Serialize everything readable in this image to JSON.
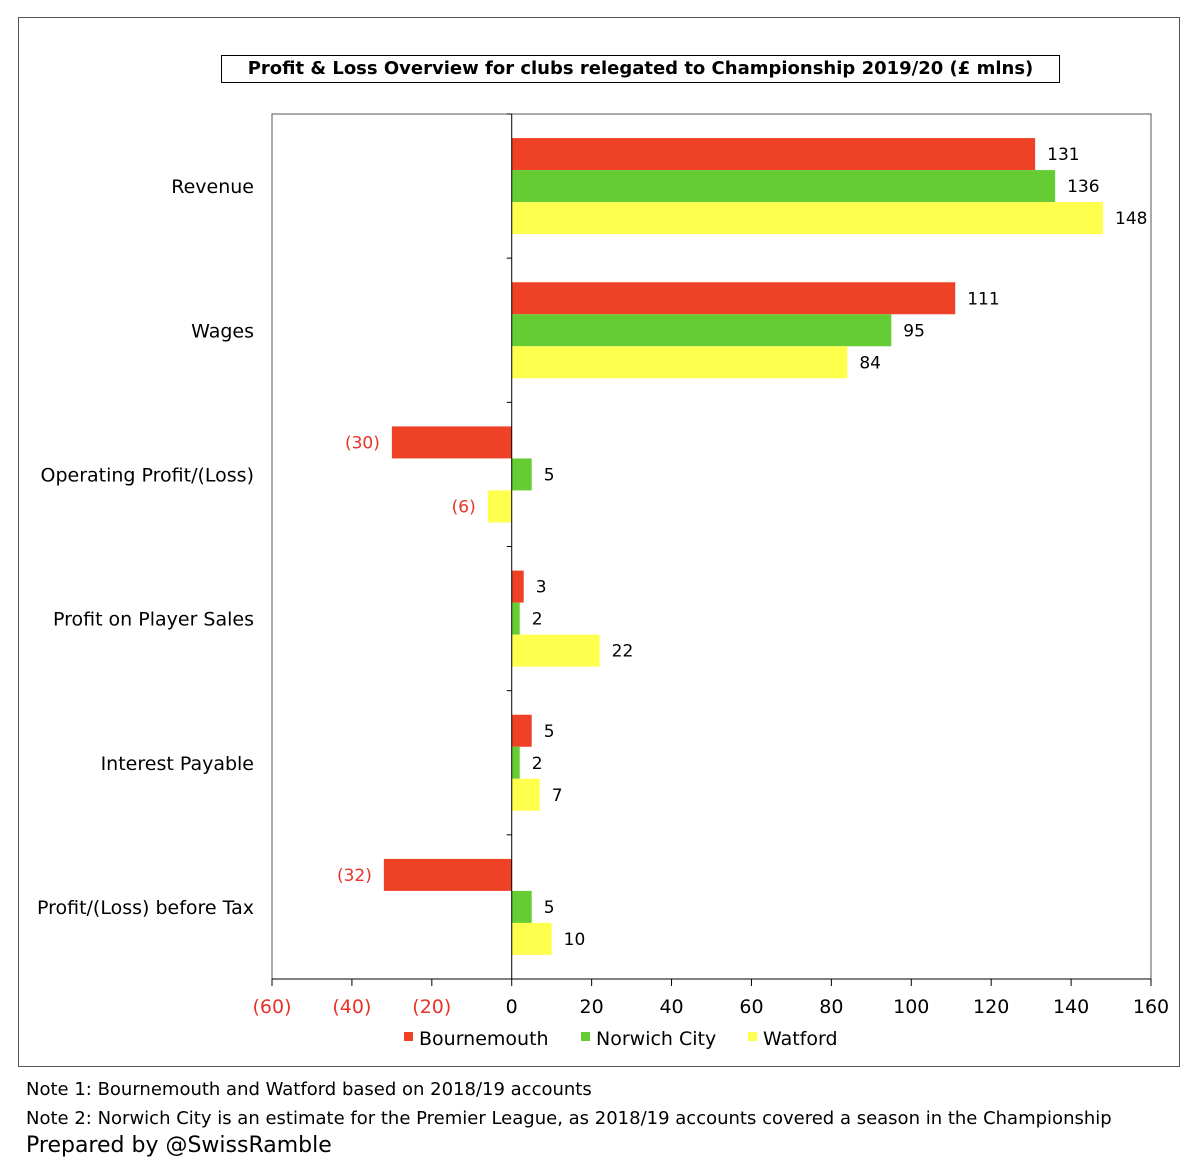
{
  "chart_data": {
    "type": "bar",
    "orientation": "horizontal",
    "title": "Profit & Loss Overview for clubs relegated to Championship 2019/20 (£ mlns)",
    "categories": [
      "Revenue",
      "Wages",
      "Operating Profit/(Loss)",
      "Profit on Player Sales",
      "Interest Payable",
      "Profit/(Loss) before Tax"
    ],
    "series": [
      {
        "name": "Bournemouth",
        "color": "#ee4126",
        "values": [
          131,
          111,
          -30,
          3,
          5,
          -32
        ],
        "labels": [
          "131",
          "111",
          "(30)",
          "3",
          "5",
          "(32)"
        ]
      },
      {
        "name": "Norwich City",
        "color": "#66cc33",
        "values": [
          136,
          95,
          5,
          2,
          2,
          5
        ],
        "labels": [
          "136",
          "95",
          "5",
          "2",
          "2",
          "5"
        ]
      },
      {
        "name": "Watford",
        "color": "#ffff4d",
        "values": [
          148,
          84,
          -6,
          22,
          7,
          10
        ],
        "labels": [
          "148",
          "84",
          "(6)",
          "22",
          "7",
          "10"
        ]
      }
    ],
    "xlim": [
      -60,
      160
    ],
    "xticks": [
      -60,
      -40,
      -20,
      0,
      20,
      40,
      60,
      80,
      100,
      120,
      140,
      160
    ],
    "xtick_labels": [
      "(60)",
      "(40)",
      "(20)",
      "0",
      "20",
      "40",
      "60",
      "80",
      "100",
      "120",
      "140",
      "160"
    ],
    "negative_label_color": "#e8322a",
    "legend": "bottom",
    "grid": false
  },
  "notes": {
    "note1": "Note 1: Bournemouth and Watford based on 2018/19 accounts",
    "note2": "Note 2: Norwich City is an estimate for the Premier League, as 2018/19 accounts covered a season in the Championship",
    "prepared_by": "Prepared by @SwissRamble"
  }
}
